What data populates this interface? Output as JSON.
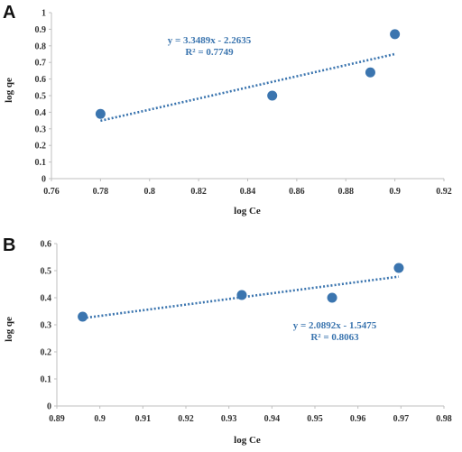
{
  "colors": {
    "accent": "#3B75AF",
    "axis": "#BFBFBF"
  },
  "chart_data": [
    {
      "type": "scatter",
      "panel": "A",
      "title": "",
      "xlabel": "log Ce",
      "ylabel": "log qe",
      "xlim": [
        0.76,
        0.92
      ],
      "ylim": [
        0,
        1
      ],
      "xticks": [
        0.76,
        0.78,
        0.8,
        0.82,
        0.84,
        0.86,
        0.88,
        0.9,
        0.92
      ],
      "xtick_labels": [
        "0.76",
        "0.78",
        "0.8",
        "0.82",
        "0.84",
        "0.86",
        "0.88",
        "0.9",
        "0.92"
      ],
      "yticks": [
        0,
        0.1,
        0.2,
        0.3,
        0.4,
        0.5,
        0.6,
        0.7,
        0.8,
        0.9,
        1
      ],
      "ytick_labels": [
        "0",
        "0.1",
        "0.2",
        "0.3",
        "0.4",
        "0.5",
        "0.6",
        "0.7",
        "0.8",
        "0.9",
        "1"
      ],
      "grid": false,
      "points": [
        {
          "x": 0.78,
          "y": 0.39
        },
        {
          "x": 0.85,
          "y": 0.5
        },
        {
          "x": 0.89,
          "y": 0.64
        },
        {
          "x": 0.9,
          "y": 0.87
        }
      ],
      "trendline": {
        "type": "linear",
        "slope": 3.3489,
        "intercept": -2.2635,
        "x_range": [
          0.78,
          0.9
        ],
        "style": "dotted"
      },
      "annotations": [
        "y = 3.3489x - 2.2635",
        "R² = 0.7749"
      ]
    },
    {
      "type": "scatter",
      "panel": "B",
      "title": "",
      "xlabel": "log Ce",
      "ylabel": "log qe",
      "xlim": [
        0.89,
        0.98
      ],
      "ylim": [
        0,
        0.6
      ],
      "xticks": [
        0.89,
        0.9,
        0.91,
        0.92,
        0.93,
        0.94,
        0.95,
        0.96,
        0.97,
        0.98
      ],
      "xtick_labels": [
        "0.89",
        "0.9",
        "0.91",
        "0.92",
        "0.93",
        "0.94",
        "0.95",
        "0.96",
        "0.97",
        "0.98"
      ],
      "yticks": [
        0,
        0.1,
        0.2,
        0.3,
        0.4,
        0.5,
        0.6
      ],
      "ytick_labels": [
        "0",
        "0.1",
        "0.2",
        "0.3",
        "0.4",
        "0.5",
        "0.6"
      ],
      "grid": false,
      "points": [
        {
          "x": 0.896,
          "y": 0.33
        },
        {
          "x": 0.933,
          "y": 0.41
        },
        {
          "x": 0.954,
          "y": 0.4
        },
        {
          "x": 0.9695,
          "y": 0.51
        }
      ],
      "trendline": {
        "type": "linear",
        "slope": 2.0892,
        "intercept": -1.5475,
        "x_range": [
          0.896,
          0.9695
        ],
        "style": "dotted"
      },
      "annotations": [
        "y = 2.0892x - 1.5475",
        "R² = 0.8063"
      ]
    }
  ]
}
